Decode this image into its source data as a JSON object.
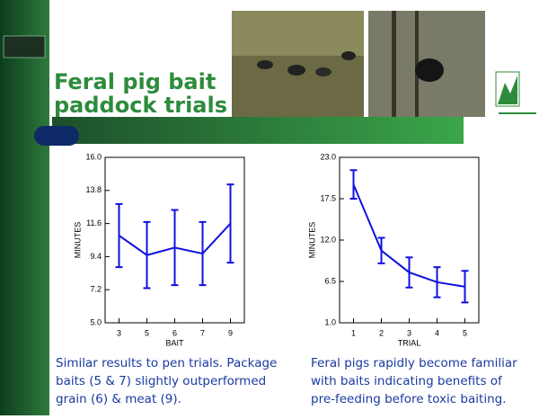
{
  "slide": {
    "title_lines": [
      "Feral pig bait",
      "paddock trials"
    ],
    "captions": [
      [
        "Similar results to pen trials. Package",
        "baits (5 & 7) slightly outperformed",
        "grain (6) & meat (9)."
      ],
      [
        "Feral pigs rapidly become familiar",
        "with baits indicating benefits of",
        "pre-feeding before toxic baiting."
      ]
    ]
  },
  "chart_data": [
    {
      "type": "line",
      "xlabel": "BAIT",
      "ylabel": "MINUTES",
      "color": "#1010e0",
      "categories": [
        "3",
        "5",
        "6",
        "7",
        "9"
      ],
      "values": [
        10.8,
        9.5,
        10.0,
        9.6,
        11.6
      ],
      "errors": [
        2.1,
        2.2,
        2.5,
        2.1,
        2.6
      ],
      "ylim": [
        5,
        16
      ],
      "yticks": [
        {
          "value": 5,
          "label": "5.0"
        },
        7.2,
        9.4,
        11.6,
        13.8,
        {
          "value": 16,
          "label": "16.0"
        }
      ]
    },
    {
      "type": "line",
      "xlabel": "TRIAL",
      "ylabel": "MINUTES",
      "color": "#1010e0",
      "categories": [
        "1",
        "2",
        "3",
        "4",
        "5"
      ],
      "values": [
        19.4,
        10.6,
        7.7,
        6.4,
        5.8
      ],
      "errors": [
        1.9,
        1.7,
        2.0,
        2.0,
        2.1
      ],
      "ylim": [
        1,
        23
      ],
      "yticks": [
        {
          "value": 1,
          "label": "1.0"
        },
        6.5,
        {
          "value": 12,
          "label": "12.0"
        },
        17.5,
        {
          "value": 23,
          "label": "23.0"
        }
      ]
    }
  ]
}
